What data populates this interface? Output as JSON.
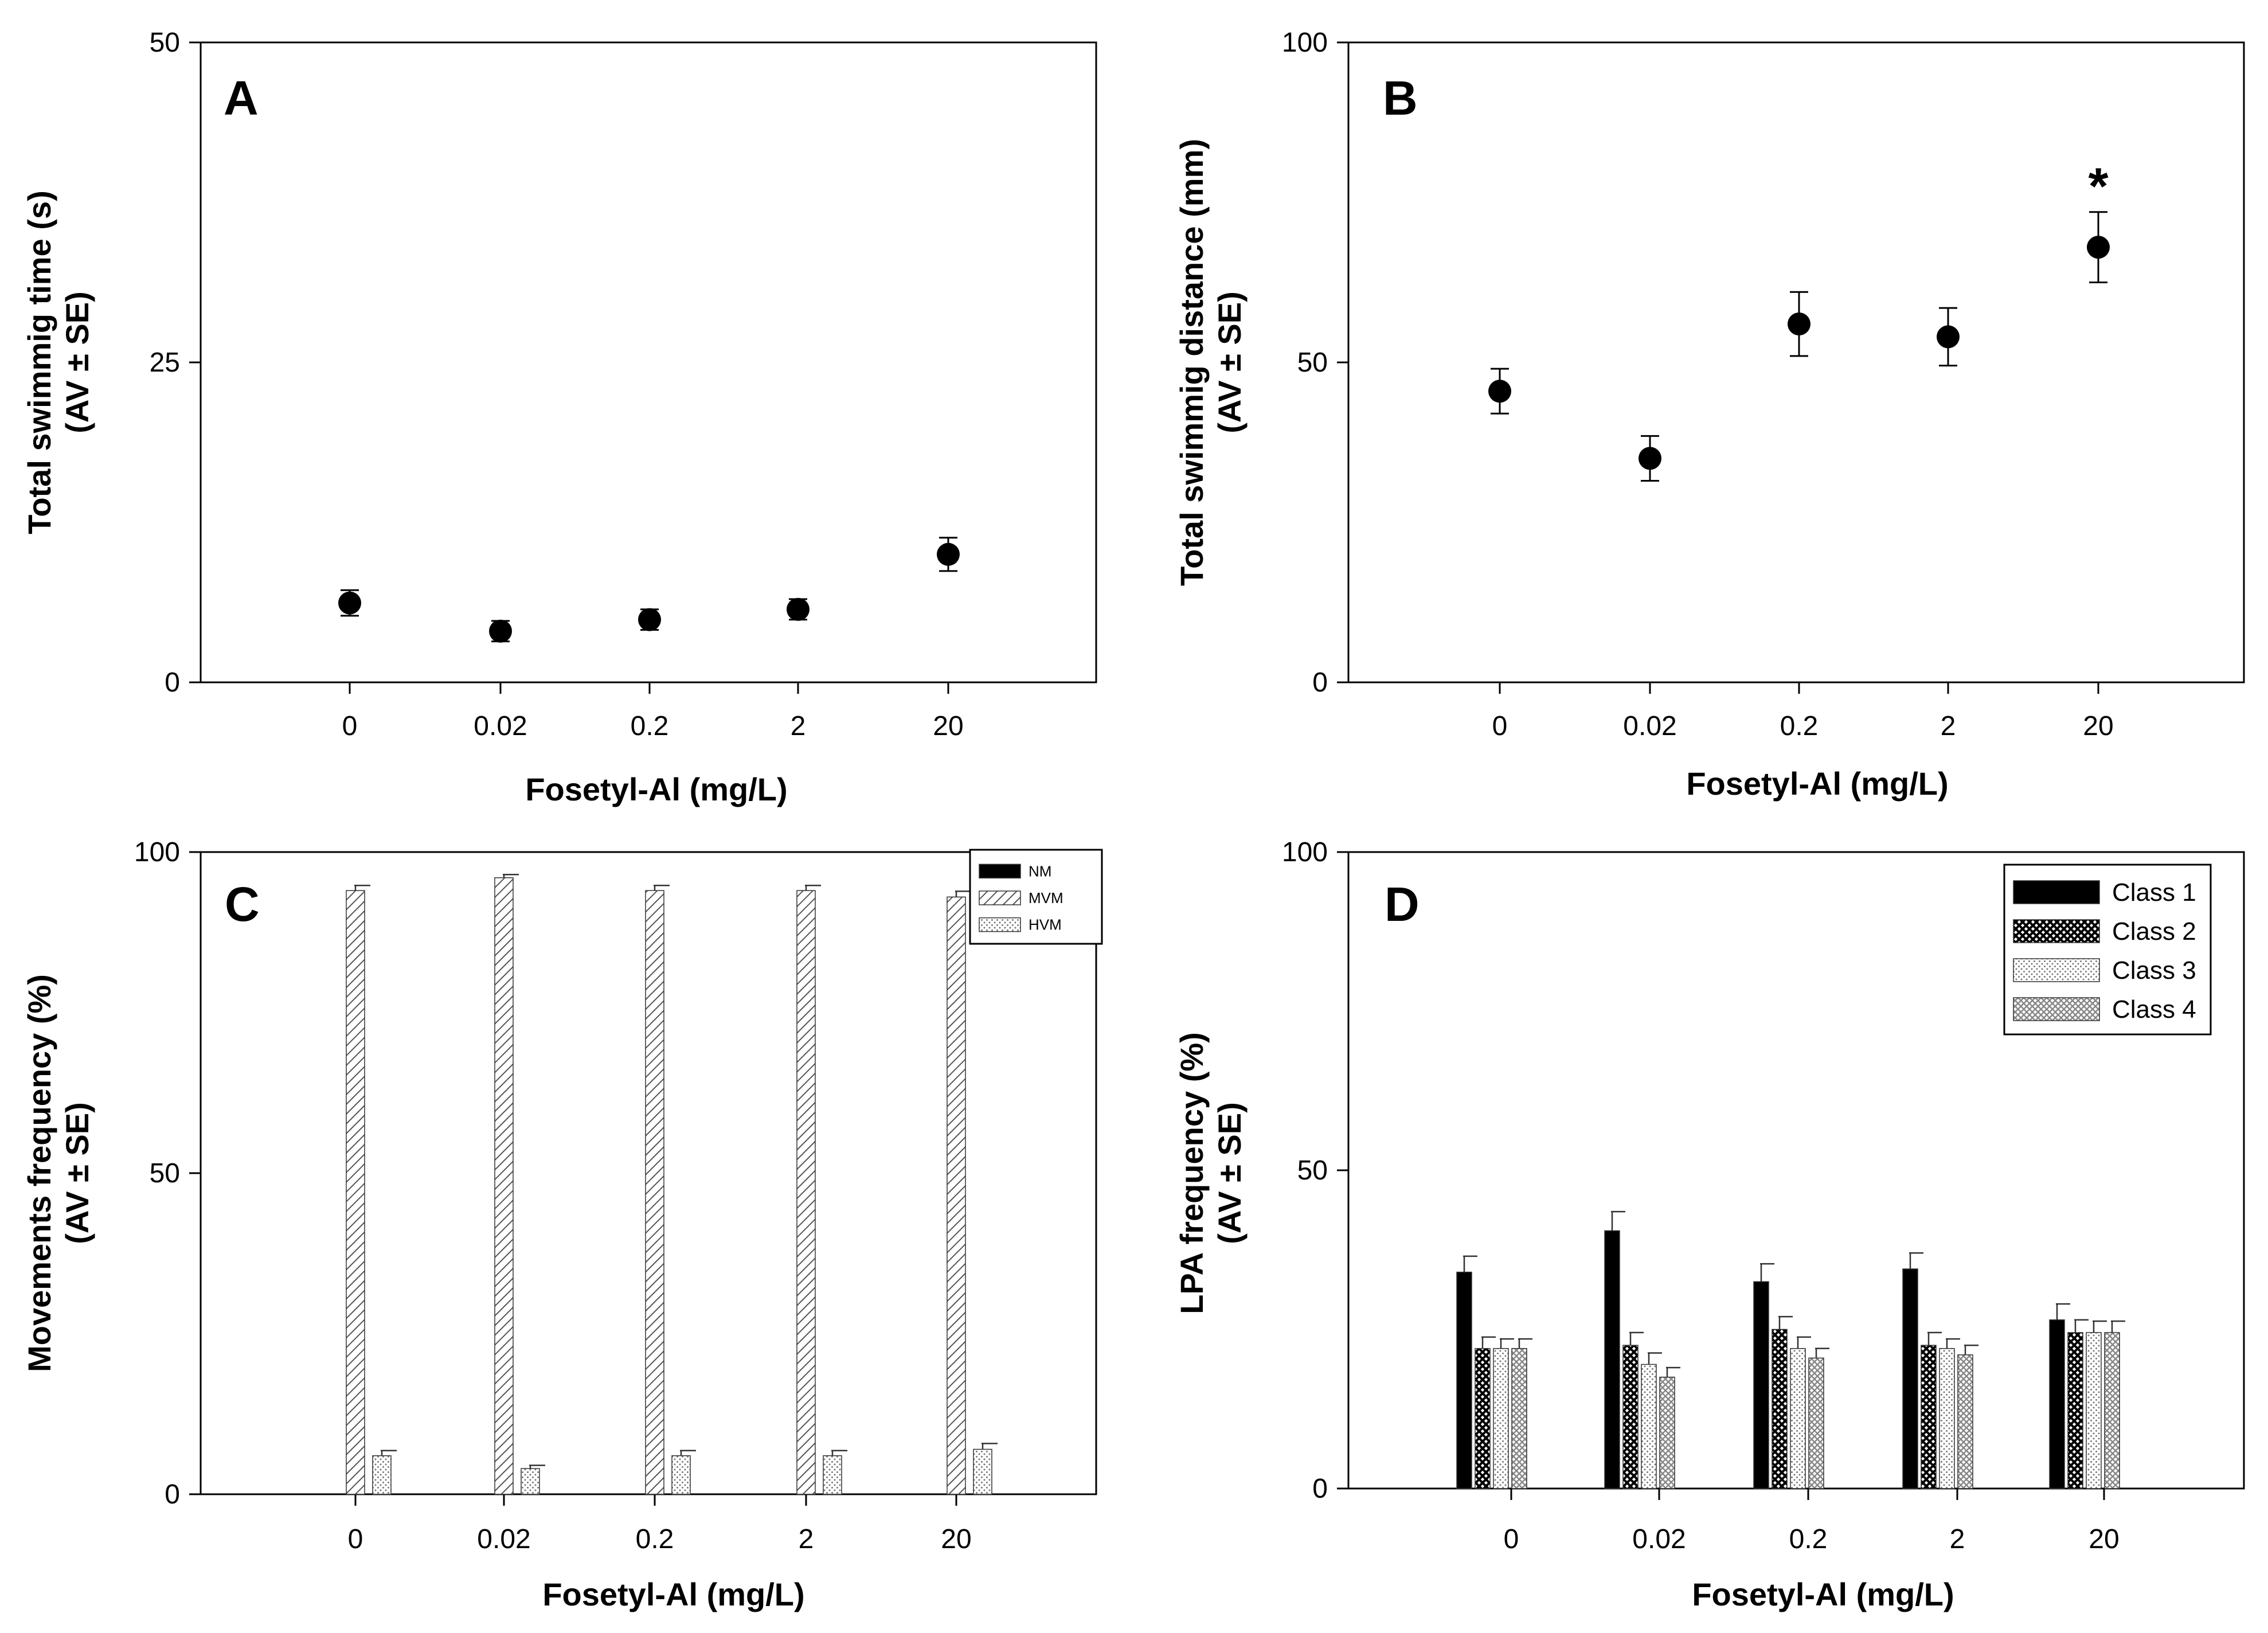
{
  "chart_data": [
    {
      "panel": "A",
      "type": "scatter",
      "xlabel": "Fosetyl-Al  (mg/L)",
      "ylabel_line1": "Total swimmig time (s)",
      "ylabel_line2": "(AV ± SE)",
      "ylim": [
        0,
        50
      ],
      "yticks": [
        "0",
        "25",
        "50"
      ],
      "categories": [
        "0",
        "0.02",
        "0.2",
        "2",
        "20"
      ],
      "values": [
        6.2,
        4.0,
        4.9,
        5.7,
        10.0
      ],
      "errors": [
        1.0,
        0.8,
        0.8,
        0.8,
        1.3
      ],
      "annotations": []
    },
    {
      "panel": "B",
      "type": "scatter",
      "xlabel": "Fosetyl-Al  (mg/L)",
      "ylabel_line1": "Total swimmig distance (mm)",
      "ylabel_line2": "(AV ± SE)",
      "ylim": [
        0,
        100
      ],
      "yticks": [
        "0",
        "50",
        "100"
      ],
      "categories": [
        "0",
        "0.02",
        "0.2",
        "2",
        "20"
      ],
      "values": [
        45.5,
        35.0,
        56.0,
        54.0,
        68.0
      ],
      "errors": [
        3.5,
        3.5,
        5.0,
        4.5,
        5.5
      ],
      "annotations": [
        {
          "category_index": 4,
          "text": "*"
        }
      ]
    },
    {
      "panel": "C",
      "type": "bar",
      "xlabel": "Fosetyl-Al  (mg/L)",
      "ylabel_line1": "Movements frequency (%)",
      "ylabel_line2": "(AV ± SE)",
      "ylim": [
        0,
        100
      ],
      "yticks": [
        "0",
        "50",
        "100"
      ],
      "categories": [
        "0",
        "0.02",
        "0.2",
        "2",
        "20"
      ],
      "legend_position": "top-right",
      "series": [
        {
          "name": "NM",
          "pattern": "solid",
          "values": [
            0,
            0,
            0,
            0,
            0
          ],
          "errors": [
            0,
            0,
            0,
            0,
            0
          ]
        },
        {
          "name": "MVM",
          "pattern": "hatch",
          "values": [
            94.0,
            96.0,
            94.0,
            94.0,
            93.0
          ],
          "errors": [
            0.8,
            0.5,
            0.8,
            0.8,
            0.9
          ]
        },
        {
          "name": "HVM",
          "pattern": "dots",
          "values": [
            6.0,
            4.0,
            6.0,
            6.0,
            7.0
          ],
          "errors": [
            0.8,
            0.5,
            0.8,
            0.8,
            0.9
          ]
        }
      ]
    },
    {
      "panel": "D",
      "type": "bar",
      "xlabel": "Fosetyl-Al  (mg/L)",
      "ylabel_line1": "LPA frequency (%)",
      "ylabel_line2": "(AV ± SE)",
      "ylim": [
        0,
        100
      ],
      "yticks": [
        "0",
        "50",
        "100"
      ],
      "categories": [
        "0",
        "0.02",
        "0.2",
        "2",
        "20"
      ],
      "legend_position": "top-right",
      "series": [
        {
          "name": "Class 1",
          "pattern": "solid",
          "values": [
            34.0,
            40.5,
            32.5,
            34.5,
            26.5
          ],
          "errors": [
            2.5,
            3.0,
            2.8,
            2.5,
            2.5
          ]
        },
        {
          "name": "Class 2",
          "pattern": "crosshatch",
          "values": [
            22.0,
            22.5,
            25.0,
            22.5,
            24.5
          ],
          "errors": [
            1.8,
            2.0,
            2.0,
            2.0,
            2.0
          ]
        },
        {
          "name": "Class 3",
          "pattern": "dots",
          "values": [
            22.0,
            19.5,
            22.0,
            22.0,
            24.5
          ],
          "errors": [
            1.5,
            1.8,
            1.8,
            1.5,
            1.8
          ]
        },
        {
          "name": "Class 4",
          "pattern": "cross-dense",
          "values": [
            22.0,
            17.5,
            20.5,
            21.0,
            24.5
          ],
          "errors": [
            1.5,
            1.5,
            1.5,
            1.5,
            1.8
          ]
        }
      ]
    }
  ]
}
